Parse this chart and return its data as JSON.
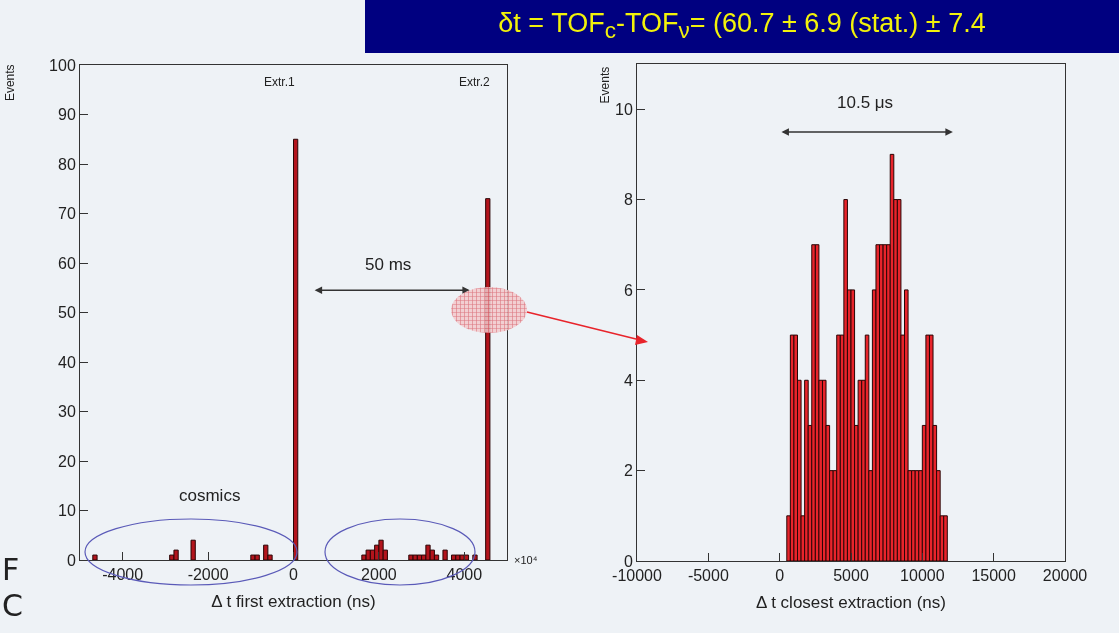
{
  "chart_data": [
    {
      "type": "histogram",
      "xlabel": "Δ t first extraction (ns)",
      "ylabel": "Events",
      "bins": [
        -5000,
        -4900,
        -4800,
        -4700,
        -4600,
        -4500,
        -4400,
        -4300,
        -4200,
        -4100,
        -4000,
        -3900,
        -3800,
        -3700,
        -3600,
        -3500,
        -3400,
        -3300,
        -3200,
        -3100,
        -3000,
        -2900,
        -2800,
        -2700,
        -2600,
        -2500,
        -2400,
        -2300,
        -2200,
        -2100,
        -2000,
        -1900,
        -1800,
        -1700,
        -1600,
        -1500,
        -1400,
        -1300,
        -1200,
        -1100,
        -1000,
        -900,
        -800,
        -700,
        -600,
        -500,
        -400,
        -300,
        -200,
        -100,
        0,
        100,
        200,
        300,
        400,
        500,
        600,
        700,
        800,
        900,
        1000,
        1100,
        1200,
        1300,
        1400,
        1500,
        1600,
        1700,
        1800,
        1900,
        2000,
        2100,
        2200,
        2300,
        2400,
        2500,
        2600,
        2700,
        2800,
        2900,
        3000,
        3100,
        3200,
        3300,
        3400,
        3500,
        3600,
        3700,
        3800,
        3900,
        4000,
        4100,
        4200,
        4300,
        4400,
        4500,
        4600,
        4700,
        4800,
        4900,
        5000
      ],
      "values": [
        0,
        0,
        0,
        1,
        0,
        0,
        0,
        0,
        0,
        0,
        0,
        0,
        0,
        0,
        0,
        0,
        0,
        0,
        0,
        0,
        0,
        1,
        2,
        0,
        0,
        0,
        4,
        0,
        0,
        0,
        0,
        0,
        0,
        0,
        0,
        0,
        0,
        0,
        0,
        0,
        1,
        1,
        0,
        3,
        1,
        0,
        0,
        0,
        0,
        0,
        85,
        0,
        0,
        0,
        0,
        0,
        0,
        0,
        0,
        0,
        0,
        0,
        0,
        0,
        0,
        0,
        1,
        2,
        2,
        3,
        4,
        2,
        0,
        0,
        0,
        0,
        0,
        1,
        1,
        1,
        1,
        3,
        2,
        1,
        0,
        2,
        0,
        1,
        1,
        1,
        1,
        0,
        1,
        0,
        0,
        73,
        0,
        0,
        0,
        0
      ],
      "color": "#b3141c",
      "xlim": [
        -5000,
        5000
      ],
      "xticks": [
        -4000,
        -2000,
        0,
        2000,
        4000
      ],
      "ylim": [
        0,
        100
      ],
      "yticks": [
        0,
        10,
        20,
        30,
        40,
        50,
        60,
        70,
        80,
        90,
        100
      ],
      "grid": false,
      "annotations": [
        "Extr.1",
        "Extr.2",
        "50 ms",
        "cosmics",
        "×10⁴",
        "F",
        "C"
      ]
    },
    {
      "type": "histogram",
      "xlabel": "Δ t closest extraction (ns)",
      "ylabel": "Events",
      "bins": [
        500,
        750,
        1000,
        1250,
        1500,
        1750,
        2000,
        2250,
        2500,
        2750,
        3000,
        3250,
        3500,
        3750,
        4000,
        4250,
        4500,
        4750,
        5000,
        5250,
        5500,
        5750,
        6000,
        6250,
        6500,
        6750,
        7000,
        7250,
        7500,
        7750,
        8000,
        8250,
        8500,
        8750,
        9000,
        9250,
        9500,
        9750,
        10000,
        10250,
        10500,
        10750,
        11000,
        11250,
        11500,
        11750
      ],
      "values": [
        1,
        5,
        5,
        4,
        1,
        4,
        3,
        7,
        7,
        4,
        4,
        3,
        2,
        2,
        5,
        5,
        8,
        6,
        6,
        3,
        4,
        4,
        5,
        2,
        6,
        7,
        7,
        7,
        7,
        9,
        8,
        8,
        5,
        6,
        2,
        2,
        2,
        2,
        3,
        5,
        5,
        3,
        2,
        1,
        1
      ],
      "color": "#e8242b",
      "xlim": [
        -10000,
        20000
      ],
      "xticks": [
        -10000,
        -5000,
        0,
        5000,
        10000,
        15000,
        20000
      ],
      "ylim": [
        0,
        11
      ],
      "yticks": [
        0,
        2,
        4,
        6,
        8,
        10
      ],
      "grid": false,
      "annotations": [
        "10.5 μs"
      ]
    },
    {
      "type": "other",
      "title": "δt = TOF$_{c}$-TOF$_{ν}$= (60.7 ± 6.9 (stat.) ± 7.4"
    }
  ]
}
